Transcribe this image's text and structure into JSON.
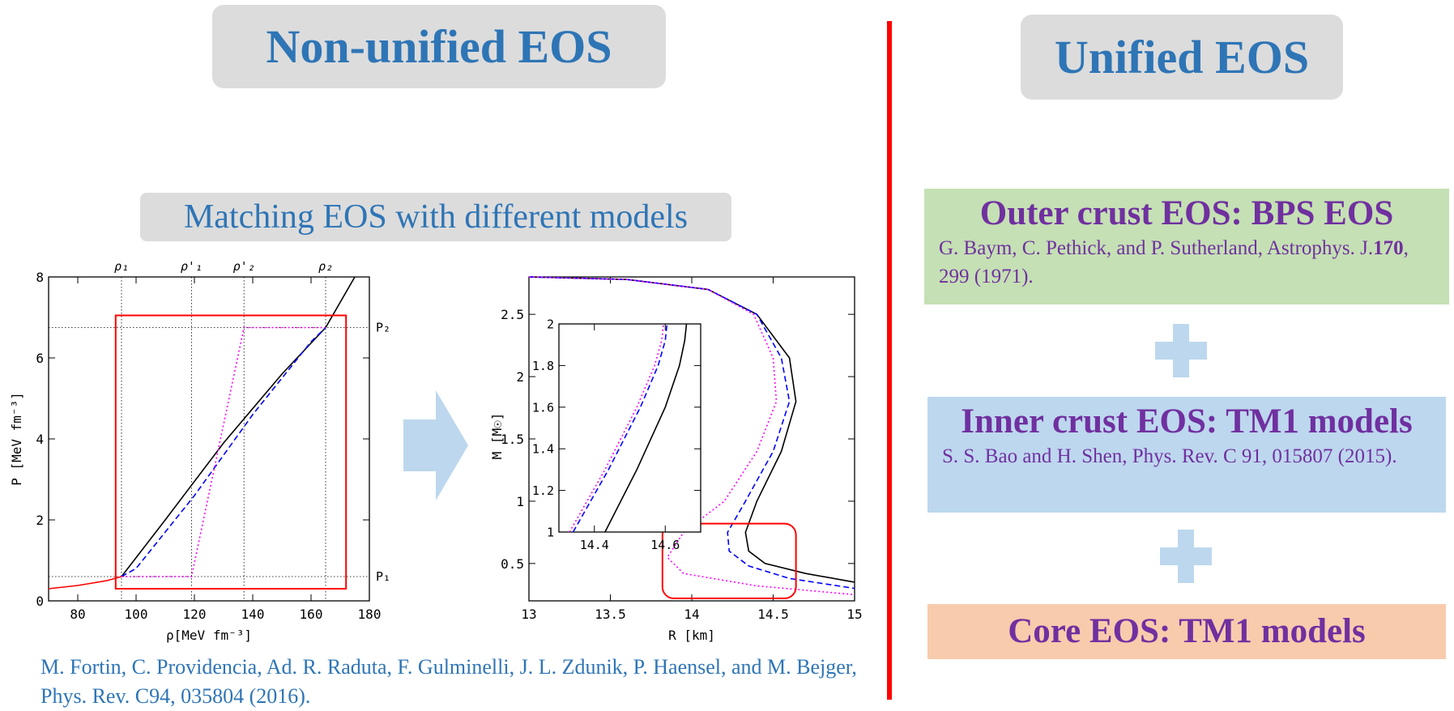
{
  "left": {
    "title": "Non-unified EOS",
    "subtitle": "Matching EOS with different models",
    "reference": "M. Fortin, C. Providencia, Ad. R. Raduta, F. Gulminelli, J. L. Zdunik, P. Haensel, and M. Bejger, Phys. Rev. C94, 035804 (2016)."
  },
  "right": {
    "title": "Unified EOS",
    "outer": {
      "heading": "Outer crust EOS: BPS EOS",
      "ref_a": "G. Baym, C. Pethick, and P. Sutherland, Astrophys. J.",
      "ref_vol": "170",
      "ref_b": ", 299 (1971)."
    },
    "inner": {
      "heading": "Inner crust EOS: TM1 models",
      "ref": "S. S. Bao and H. Shen, Phys. Rev. C 91, 015807 (2015)."
    },
    "core": {
      "heading": "Core EOS: TM1 models"
    }
  },
  "colors": {
    "title_blue": "#2e75b6",
    "purple": "#7030a0",
    "divider_red": "#ff0000",
    "outer_bg": "#c5e0b4",
    "inner_bg": "#bdd7ee",
    "core_bg": "#f8cbad",
    "pill_bg": "#dcdcdc",
    "arrow": "#bdd7ee"
  },
  "chart_data": [
    {
      "type": "line",
      "xlabel": "ρ[MeV fm⁻³]",
      "ylabel": "P  [MeV fm⁻³]",
      "xlim": [
        70,
        180
      ],
      "ylim": [
        0,
        8
      ],
      "xticks": [
        "80",
        "100",
        "120",
        "140",
        "160",
        "180"
      ],
      "yticks": [
        "0",
        "2",
        "4",
        "6",
        "8"
      ],
      "top_labels": [
        "ρ₁",
        "ρ'₁",
        "ρ'₂",
        "ρ₂"
      ],
      "top_label_x": [
        95,
        119,
        137,
        165
      ],
      "right_labels": [
        "P₂",
        "P₁"
      ],
      "right_label_y": [
        6.75,
        0.6
      ],
      "series": [
        {
          "color": "#ff0000",
          "style": "solid",
          "x": [
            70,
            80,
            90,
            95
          ],
          "y": [
            0.3,
            0.38,
            0.5,
            0.6
          ]
        },
        {
          "color": "#000000",
          "style": "solid",
          "x": [
            95,
            110,
            130,
            150,
            165,
            175
          ],
          "y": [
            0.6,
            2.0,
            3.9,
            5.6,
            6.75,
            8.0
          ]
        },
        {
          "color": "#0000ff",
          "style": "dashed",
          "x": [
            95,
            100,
            120,
            140,
            160,
            165
          ],
          "y": [
            0.6,
            0.8,
            2.6,
            4.6,
            6.4,
            6.75
          ]
        },
        {
          "color": "#ff00ff",
          "style": "dotted",
          "x": [
            95,
            119,
            137,
            165
          ],
          "y": [
            0.6,
            0.6,
            6.75,
            6.75
          ]
        }
      ],
      "highlight_box": {
        "x": [
          93,
          172
        ],
        "y": [
          0.3,
          7.05
        ]
      }
    },
    {
      "type": "line",
      "xlabel": "R [km]",
      "ylabel": "M [M☉]",
      "xlim": [
        13,
        15
      ],
      "ylim": [
        0.2,
        2.8
      ],
      "xticks": [
        "13",
        "13.5",
        "14",
        "14.5",
        "15"
      ],
      "yticks": [
        "0.5",
        "1",
        "1.5",
        "2",
        "2.5"
      ],
      "series": [
        {
          "color": "#000000",
          "style": "solid",
          "x": [
            13.0,
            13.6,
            14.1,
            14.4,
            14.6,
            14.64,
            14.55,
            14.4,
            14.33,
            14.35,
            14.45,
            14.7,
            15.0
          ],
          "y": [
            2.8,
            2.78,
            2.7,
            2.5,
            2.15,
            1.8,
            1.4,
            1.0,
            0.75,
            0.6,
            0.5,
            0.42,
            0.35
          ]
        },
        {
          "color": "#0000ff",
          "style": "dashed",
          "x": [
            13.0,
            13.6,
            14.1,
            14.4,
            14.55,
            14.6,
            14.5,
            14.33,
            14.22,
            14.23,
            14.35,
            14.6,
            15.0
          ],
          "y": [
            2.8,
            2.78,
            2.7,
            2.5,
            2.15,
            1.8,
            1.4,
            1.0,
            0.75,
            0.6,
            0.48,
            0.38,
            0.3
          ]
        },
        {
          "color": "#ff00ff",
          "style": "dotted",
          "x": [
            13.0,
            13.6,
            14.1,
            14.38,
            14.5,
            14.52,
            14.4,
            14.2,
            13.95,
            13.85,
            13.95,
            14.4,
            15.0
          ],
          "y": [
            2.8,
            2.78,
            2.7,
            2.5,
            2.15,
            1.8,
            1.4,
            1.0,
            0.75,
            0.55,
            0.42,
            0.32,
            0.25
          ]
        }
      ],
      "highlight_box": {
        "x": [
          13.82,
          14.64
        ],
        "y": [
          0.22,
          0.82
        ]
      },
      "inset": {
        "xlim": [
          14.3,
          14.7
        ],
        "ylim": [
          1,
          2
        ],
        "xticks": [
          "14.4",
          "14.6"
        ],
        "yticks": [
          "1",
          "1.2",
          "1.4",
          "1.6",
          "1.8",
          "2"
        ],
        "series": [
          {
            "color": "#000000",
            "style": "solid",
            "x": [
              14.43,
              14.52,
              14.6,
              14.64,
              14.655,
              14.66
            ],
            "y": [
              1.0,
              1.3,
              1.6,
              1.8,
              1.92,
              2.0
            ]
          },
          {
            "color": "#0000ff",
            "style": "dashed",
            "x": [
              14.34,
              14.44,
              14.53,
              14.58,
              14.6,
              14.605
            ],
            "y": [
              1.0,
              1.3,
              1.6,
              1.8,
              1.92,
              2.0
            ]
          },
          {
            "color": "#ff00ff",
            "style": "dotted",
            "x": [
              14.33,
              14.43,
              14.52,
              14.57,
              14.59,
              14.595
            ],
            "y": [
              1.0,
              1.3,
              1.6,
              1.8,
              1.92,
              2.0
            ]
          }
        ]
      }
    }
  ]
}
